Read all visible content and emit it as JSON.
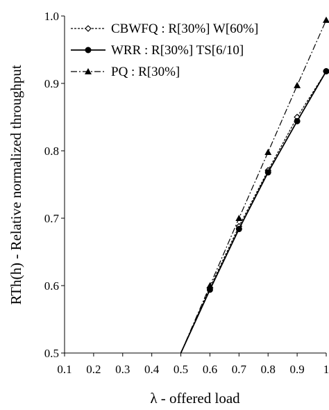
{
  "chart_data": {
    "type": "line",
    "title": "",
    "xlabel": "λ - offered load",
    "ylabel": "RTh(h) - Relative normalized throughput",
    "xlim": [
      0.1,
      1.0
    ],
    "ylim": [
      0.5,
      1.0
    ],
    "x_ticks": [
      0.1,
      0.2,
      0.3,
      0.4,
      0.5,
      0.6,
      0.7,
      0.8,
      0.9,
      1.0
    ],
    "x_tick_labels": [
      "0.1",
      "0.2",
      "0.3",
      "0.4",
      "0.5",
      "0.6",
      "0.7",
      "0.8",
      "0.9",
      "1"
    ],
    "y_ticks": [
      0.5,
      0.6,
      0.7,
      0.8,
      0.9,
      1.0
    ],
    "y_tick_labels": [
      "0.5",
      "0.6",
      "0.7",
      "0.8",
      "0.9",
      "1.0"
    ],
    "grid": false,
    "legend_position": "top-left",
    "x": [
      0.5,
      0.6,
      0.7,
      0.8,
      0.9,
      1.0
    ],
    "series": [
      {
        "name": "CBWFQ : R[30%] W[60%]",
        "values": [
          0.5,
          0.597,
          0.688,
          0.771,
          0.85,
          0.918
        ],
        "line_style": "dotted",
        "marker": "open-diamond",
        "color": "#000000"
      },
      {
        "name": "WRR : R[30%] TS[6/10]",
        "values": [
          0.5,
          0.594,
          0.684,
          0.768,
          0.844,
          0.918
        ],
        "line_style": "solid",
        "marker": "filled-circle",
        "color": "#000000"
      },
      {
        "name": "PQ : R[30%]",
        "values": [
          0.5,
          0.6,
          0.7,
          0.798,
          0.897,
          0.994
        ],
        "line_style": "dash-dot",
        "marker": "filled-triangle",
        "color": "#000000"
      }
    ]
  }
}
